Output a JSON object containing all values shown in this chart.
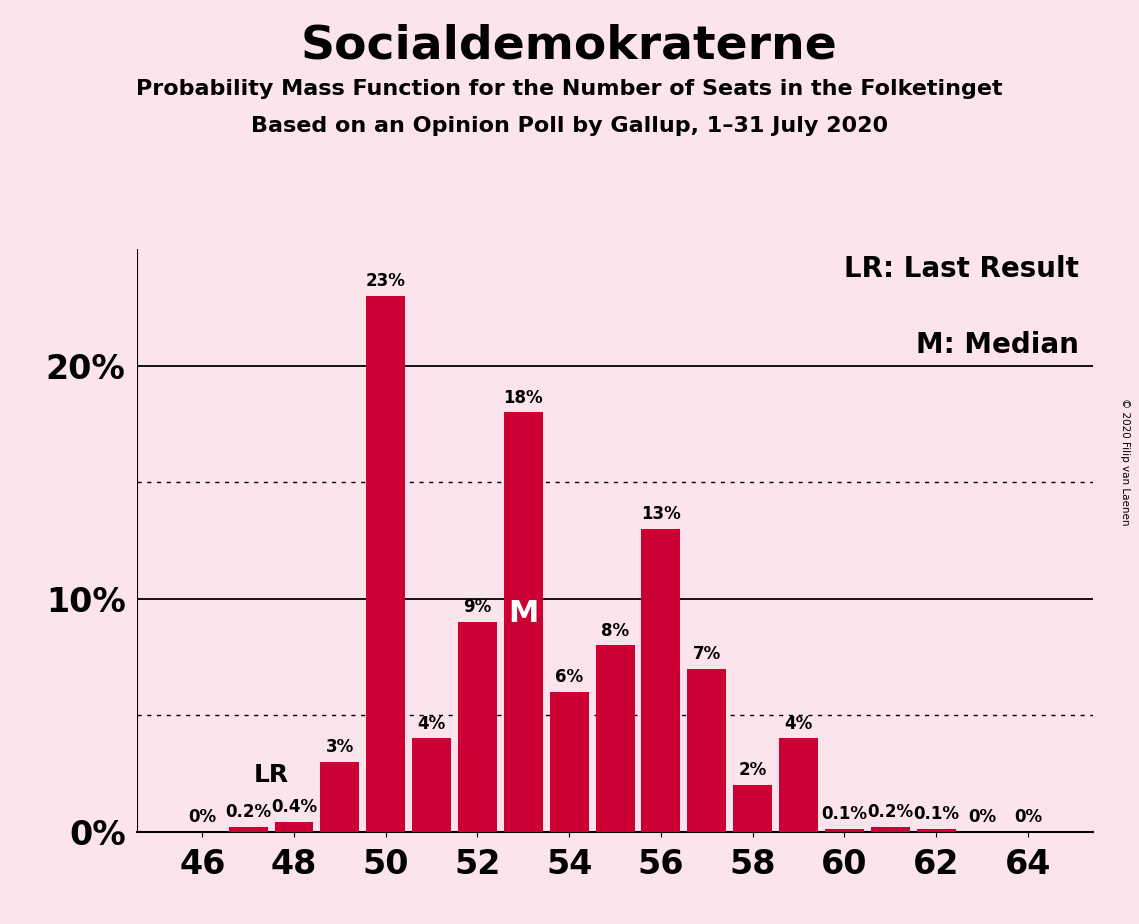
{
  "title": "Socialdemokraterne",
  "subtitle1": "Probability Mass Function for the Number of Seats in the Folketinget",
  "subtitle2": "Based on an Opinion Poll by Gallup, 1–31 July 2020",
  "copyright": "© 2020 Filip van Laenen",
  "background_color": "#fce4ec",
  "bar_color": "#cc0033",
  "seats": [
    46,
    47,
    48,
    49,
    50,
    51,
    52,
    53,
    54,
    55,
    56,
    57,
    58,
    59,
    60,
    61,
    62,
    63,
    64
  ],
  "probabilities": [
    0.0,
    0.2,
    0.4,
    3.0,
    23.0,
    4.0,
    9.0,
    18.0,
    6.0,
    8.0,
    13.0,
    7.0,
    2.0,
    4.0,
    0.1,
    0.2,
    0.1,
    0.0,
    0.0
  ],
  "labels": [
    "0%",
    "0.2%",
    "0.4%",
    "3%",
    "23%",
    "4%",
    "9%",
    "18%",
    "6%",
    "8%",
    "13%",
    "7%",
    "2%",
    "4%",
    "0.1%",
    "0.2%",
    "0.1%",
    "0%",
    "0%"
  ],
  "last_result_seat": 48,
  "median_seat": 53,
  "ylim": [
    0,
    25
  ],
  "xticks": [
    46,
    48,
    50,
    52,
    54,
    56,
    58,
    60,
    62,
    64
  ],
  "solid_yticks": [
    0,
    10,
    20
  ],
  "dotted_yticks": [
    5,
    15
  ],
  "legend_text1": "LR: Last Result",
  "legend_text2": "M: Median",
  "label_fontsize": 12,
  "title_fontsize": 34,
  "subtitle_fontsize": 16,
  "axis_tick_fontsize": 24,
  "ytick_fontsize": 24,
  "legend_fontsize": 20,
  "lr_fontsize": 18,
  "m_fontsize": 22
}
